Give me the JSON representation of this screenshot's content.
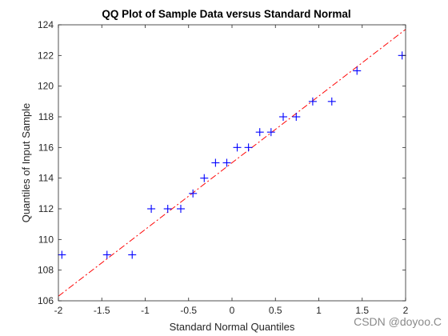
{
  "chart_data": {
    "type": "scatter",
    "title": "QQ Plot of Sample Data versus Standard Normal",
    "xlabel": "Standard Normal Quantiles",
    "ylabel": "Quantiles of Input Sample",
    "xlim": [
      -2,
      2
    ],
    "ylim": [
      106,
      124
    ],
    "xticks": [
      -2,
      -1.5,
      -1,
      -0.5,
      0,
      0.5,
      1,
      1.5,
      2
    ],
    "xtick_labels": [
      "-2",
      "-1.5",
      "-1",
      "-0.5",
      "0",
      "0.5",
      "1",
      "1.5",
      "2"
    ],
    "yticks": [
      106,
      108,
      110,
      112,
      114,
      116,
      118,
      120,
      122,
      124
    ],
    "ytick_labels": [
      "106",
      "108",
      "110",
      "112",
      "114",
      "116",
      "118",
      "120",
      "122",
      "124"
    ],
    "grid": false,
    "series": [
      {
        "marker": "plus",
        "color": "#0000ff",
        "x": [
          -1.96,
          -1.44,
          -1.15,
          -0.93,
          -0.74,
          -0.59,
          -0.45,
          -0.32,
          -0.19,
          -0.06,
          0.06,
          0.19,
          0.32,
          0.45,
          0.59,
          0.74,
          0.93,
          1.15,
          1.44,
          1.96
        ],
        "y": [
          109,
          109,
          109,
          112,
          112,
          112,
          113,
          114,
          115,
          115,
          116,
          116,
          117,
          117,
          118,
          118,
          119,
          119,
          121,
          122
        ]
      },
      {
        "style": "dash-dot",
        "color": "#ff0000",
        "x": [
          -2,
          2
        ],
        "y": [
          106.3,
          123.7
        ]
      }
    ]
  },
  "watermark": "CSDN @doyoo.C"
}
